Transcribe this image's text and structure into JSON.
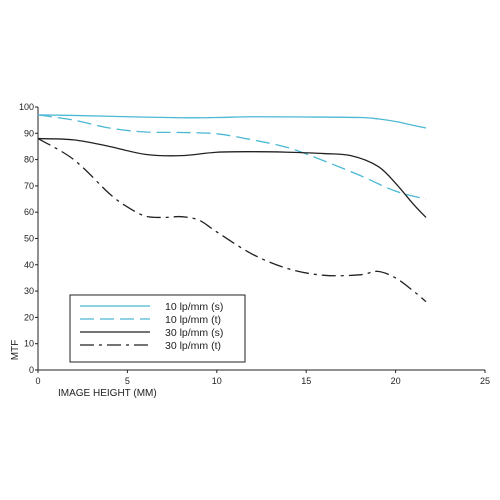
{
  "chart_data": {
    "type": "line",
    "xlabel": "IMAGE HEIGHT (MM)",
    "ylabel": "MTF",
    "xlim": [
      0,
      25
    ],
    "ylim": [
      0,
      100
    ],
    "xticks": [
      0,
      5,
      10,
      15,
      20,
      25
    ],
    "yticks": [
      0,
      10,
      20,
      30,
      40,
      50,
      60,
      70,
      80,
      90,
      100
    ],
    "grid": false,
    "legend_position": "bottom-left",
    "series": [
      {
        "name": "10 lp/mm (s)",
        "color": "#4bb8d4",
        "dash": "solid",
        "x": [
          0,
          2,
          5,
          8,
          10,
          12,
          15,
          18,
          19,
          20,
          21,
          21.7
        ],
        "y": [
          97,
          96.8,
          96.3,
          95.9,
          96,
          96.3,
          96.2,
          96,
          95.5,
          94.5,
          93,
          92
        ]
      },
      {
        "name": "10 lp/mm (t)",
        "color": "#4bb8d4",
        "dash": "long",
        "x": [
          0,
          2,
          4,
          6,
          8,
          10,
          12,
          14,
          16,
          18,
          20,
          21.7
        ],
        "y": [
          97,
          95,
          92,
          90.5,
          90.3,
          89.8,
          87.5,
          84.5,
          79.5,
          74,
          68,
          65
        ]
      },
      {
        "name": "30 lp/mm (s)",
        "color": "#222222",
        "dash": "solid",
        "x": [
          0,
          2,
          4,
          6,
          8,
          10,
          12,
          14,
          16,
          17.5,
          19,
          20,
          21,
          21.7
        ],
        "y": [
          88,
          87.5,
          85,
          82,
          81.5,
          82.8,
          83,
          82.8,
          82.3,
          81.5,
          77.5,
          71,
          63,
          58
        ]
      },
      {
        "name": "30 lp/mm (t)",
        "color": "#222222",
        "dash": "dashdot",
        "x": [
          0,
          2,
          4,
          5,
          6,
          7,
          8,
          9,
          10,
          12,
          14,
          16,
          18,
          19,
          20,
          21,
          21.7
        ],
        "y": [
          88,
          80,
          67,
          62,
          58.5,
          58,
          58.3,
          57,
          52.5,
          44,
          38.5,
          36,
          36.2,
          37.5,
          35,
          30,
          26
        ]
      }
    ]
  }
}
